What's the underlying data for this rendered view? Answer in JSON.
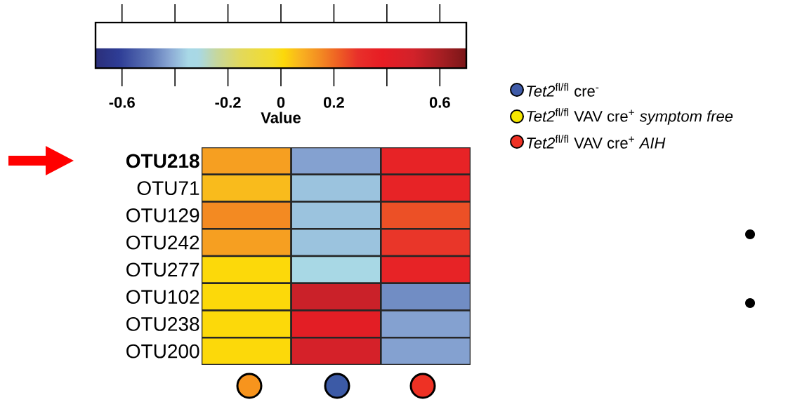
{
  "chart_data": {
    "type": "heatmap",
    "clabel": "Value",
    "categories": [
      null,
      null,
      null
    ],
    "y_categories": [
      "**OTU218**",
      "OTU71",
      "OTU129",
      "OTU242",
      "OTU277",
      "OTU102",
      "OTU238",
      "OTU200"
    ],
    "cells": [
      [
        0.11,
        -0.43,
        0.35
      ],
      [
        0.06,
        -0.38,
        0.35
      ],
      [
        0.15,
        -0.38,
        0.24
      ],
      [
        0.11,
        -0.38,
        0.28
      ],
      [
        0.01,
        -0.33,
        0.35
      ],
      [
        0.01,
        0.52,
        -0.46
      ],
      [
        0.01,
        0.4,
        -0.43
      ],
      [
        0.01,
        0.48,
        -0.43
      ]
    ],
    "clim": [
      -0.7,
      0.7
    ],
    "cticks": [
      -0.6,
      {
        "value": -0.4,
        "label": null
      },
      -0.2,
      0,
      0.2,
      {
        "value": 0.4,
        "label": null
      },
      0.6
    ],
    "annotations": [
      "*Tet2*$^{fl/fl}$ cre$^{-}$",
      "*Tet2*$^{fl/fl}$ VAV cre$^{+}$ *symptom free*",
      "*Tet2*$^{fl/fl}$ VAV cre$^{+}$ *AIH*"
    ]
  }
}
